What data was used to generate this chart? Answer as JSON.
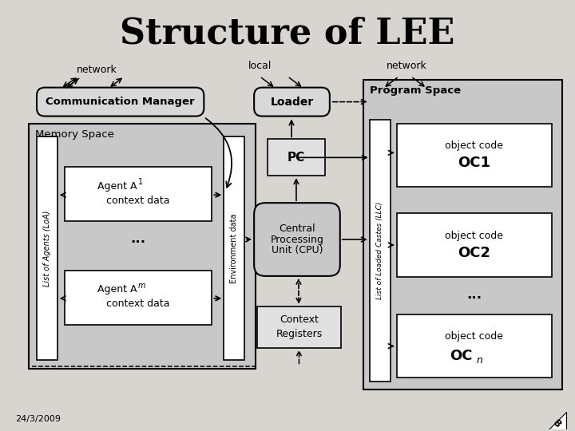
{
  "title": "Structure of LEE",
  "title_fontsize": 32,
  "bg_color": "#d0cece",
  "date_text": "24/3/2009",
  "page_num": "8",
  "labels": {
    "network_left": "network",
    "local": "local",
    "network_right": "network",
    "comm_manager": "Communication Manager",
    "loader": "Loader",
    "program_space": "Program Space",
    "memory_space": "Memory Space",
    "pc": "PC",
    "env_data": "Environment data",
    "loa": "List of Agents (LoA)",
    "llc": "List of Loaded Castes (LLC)",
    "dots_mem": "...",
    "dots_prog": "..."
  },
  "boxes": {
    "comm_manager": [
      45,
      110,
      210,
      36
    ],
    "loader": [
      318,
      110,
      95,
      36
    ],
    "program_space": [
      455,
      100,
      250,
      390
    ],
    "memory_space": [
      35,
      155,
      285,
      308
    ],
    "loa_strip": [
      45,
      172,
      26,
      280
    ],
    "env_strip": [
      280,
      172,
      26,
      280
    ],
    "agent1": [
      80,
      210,
      185,
      68
    ],
    "agentm": [
      80,
      340,
      185,
      68
    ],
    "pc": [
      335,
      175,
      72,
      46
    ],
    "cpu": [
      318,
      255,
      108,
      92
    ],
    "context_reg": [
      322,
      385,
      105,
      52
    ],
    "llc_strip": [
      463,
      150,
      26,
      330
    ],
    "oc1": [
      497,
      155,
      195,
      80
    ],
    "oc2": [
      497,
      268,
      195,
      80
    ],
    "ocn": [
      497,
      395,
      195,
      80
    ]
  }
}
